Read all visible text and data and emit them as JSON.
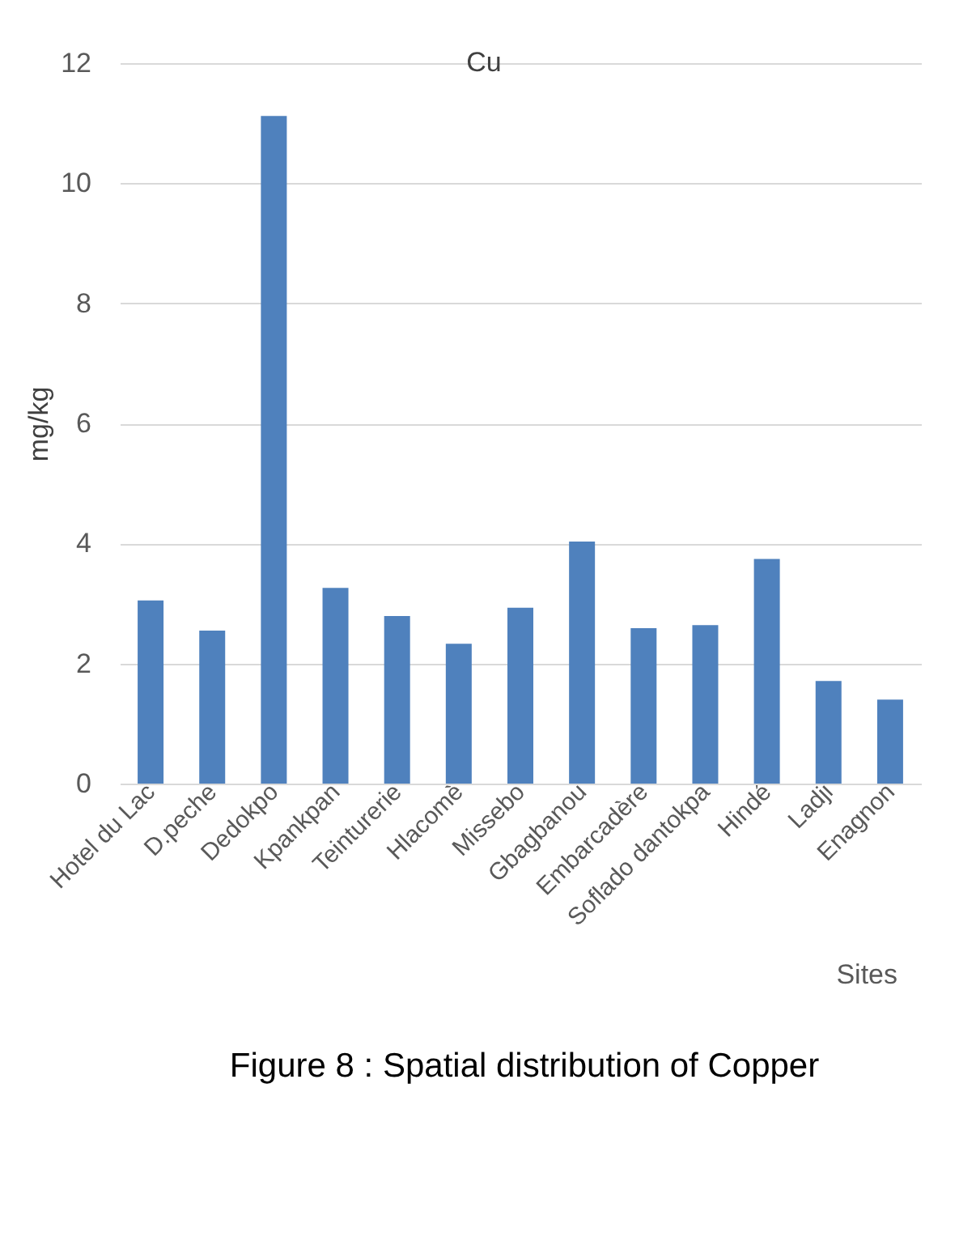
{
  "chart_data": {
    "type": "bar",
    "title": "Cu",
    "xlabel": "Sites",
    "ylabel": "mg/kg",
    "categories": [
      "Hotel du Lac",
      "D.peche",
      "Dedokpo",
      "Kpankpan",
      "Teinturerie",
      "Hlacomè",
      "Missebo",
      "Gbagbanou",
      "Embarcadère",
      "Soflado dantokpa",
      "Hindé",
      "Ladji",
      "Enagnon"
    ],
    "values": [
      3.05,
      2.55,
      11.12,
      3.26,
      2.79,
      2.33,
      2.93,
      4.03,
      2.59,
      2.64,
      3.74,
      1.71,
      1.4
    ],
    "color": "#4f81bd",
    "ylim": [
      0,
      12
    ],
    "yticks": [
      0,
      2,
      4,
      6,
      8,
      10,
      12
    ],
    "grid": "y",
    "annotations": [
      "Figure 8 : Spatial distribution of Copper"
    ]
  }
}
